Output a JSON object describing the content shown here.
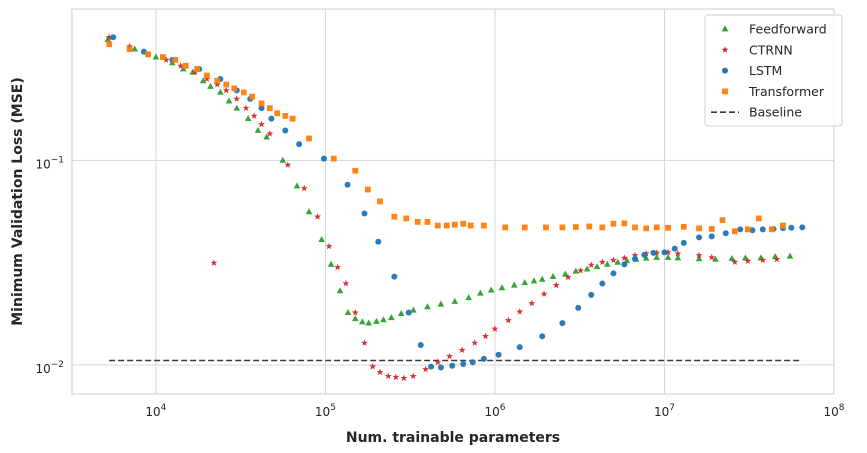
{
  "chart_data": {
    "type": "scatter",
    "xlabel": "Num. trainable parameters",
    "ylabel": "Minimum Validation Loss (MSE)",
    "xscale": "log",
    "yscale": "log",
    "xlim": [
      3200,
      100000000
    ],
    "ylim": [
      0.0072,
      0.55
    ],
    "grid": true,
    "legend_position": "top-right",
    "x_ticks": [
      {
        "value": 10000,
        "base": "10",
        "exp": "4"
      },
      {
        "value": 100000,
        "base": "10",
        "exp": "5"
      },
      {
        "value": 1000000,
        "base": "10",
        "exp": "6"
      },
      {
        "value": 10000000,
        "base": "10",
        "exp": "7"
      },
      {
        "value": 100000000,
        "base": "10",
        "exp": "8"
      }
    ],
    "y_ticks": [
      {
        "value": 0.01,
        "base": "10",
        "exp": "−2"
      },
      {
        "value": 0.1,
        "base": "10",
        "exp": "−1"
      }
    ],
    "series": [
      {
        "name": "Feedforward",
        "marker": "triangle",
        "color": "#2ca02c",
        "points": [
          [
            5200,
            0.39
          ],
          [
            7500,
            0.35
          ],
          [
            10000,
            0.32
          ],
          [
            12500,
            0.3
          ],
          [
            14500,
            0.28
          ],
          [
            16500,
            0.27
          ],
          [
            19000,
            0.245
          ],
          [
            21000,
            0.23
          ],
          [
            24000,
            0.215
          ],
          [
            27000,
            0.195
          ],
          [
            30000,
            0.18
          ],
          [
            35000,
            0.16
          ],
          [
            40000,
            0.14
          ],
          [
            45000,
            0.13
          ],
          [
            56000,
            0.1
          ],
          [
            68000,
            0.075
          ],
          [
            80000,
            0.056
          ],
          [
            95000,
            0.041
          ],
          [
            108000,
            0.031
          ],
          [
            122000,
            0.023
          ],
          [
            136000,
            0.018
          ],
          [
            150000,
            0.0168
          ],
          [
            165000,
            0.0162
          ],
          [
            180000,
            0.016
          ],
          [
            200000,
            0.0163
          ],
          [
            220000,
            0.0166
          ],
          [
            245000,
            0.017
          ],
          [
            280000,
            0.0178
          ],
          [
            330000,
            0.0185
          ],
          [
            400000,
            0.0192
          ],
          [
            480000,
            0.0198
          ],
          [
            580000,
            0.0204
          ],
          [
            700000,
            0.0213
          ],
          [
            820000,
            0.0224
          ],
          [
            950000,
            0.0232
          ],
          [
            1100000,
            0.0238
          ],
          [
            1300000,
            0.0245
          ],
          [
            1500000,
            0.0252
          ],
          [
            1700000,
            0.0257
          ],
          [
            1900000,
            0.0262
          ],
          [
            2200000,
            0.027
          ],
          [
            2600000,
            0.0278
          ],
          [
            3000000,
            0.0287
          ],
          [
            3500000,
            0.0294
          ],
          [
            4000000,
            0.0302
          ],
          [
            4600000,
            0.031
          ],
          [
            5300000,
            0.0317
          ],
          [
            6000000,
            0.0323
          ],
          [
            6800000,
            0.0328
          ],
          [
            7800000,
            0.0332
          ],
          [
            9000000,
            0.0335
          ],
          [
            10500000,
            0.0335
          ],
          [
            12000000,
            0.0333
          ],
          [
            16000000,
            0.033
          ],
          [
            20000000,
            0.0328
          ],
          [
            25000000,
            0.0331
          ],
          [
            30000000,
            0.0333
          ],
          [
            37000000,
            0.0333
          ],
          [
            45000000,
            0.0338
          ],
          [
            55000000,
            0.034
          ]
        ]
      },
      {
        "name": "CTRNN",
        "marker": "star",
        "color": "#d62728",
        "points": [
          [
            5300,
            0.4
          ],
          [
            7000,
            0.36
          ],
          [
            9000,
            0.33
          ],
          [
            11500,
            0.31
          ],
          [
            14000,
            0.29
          ],
          [
            17000,
            0.27
          ],
          [
            20000,
            0.25
          ],
          [
            23000,
            0.235
          ],
          [
            26000,
            0.22
          ],
          [
            30000,
            0.2
          ],
          [
            34000,
            0.18
          ],
          [
            38000,
            0.165
          ],
          [
            42000,
            0.15
          ],
          [
            47000,
            0.135
          ],
          [
            60000,
            0.095
          ],
          [
            75000,
            0.073
          ],
          [
            90000,
            0.053
          ],
          [
            105000,
            0.038
          ],
          [
            118000,
            0.03
          ],
          [
            132000,
            0.025
          ],
          [
            150000,
            0.018
          ],
          [
            170000,
            0.0128
          ],
          [
            190000,
            0.0098
          ],
          [
            210000,
            0.0092
          ],
          [
            235000,
            0.0088
          ],
          [
            260000,
            0.0087
          ],
          [
            290000,
            0.0086
          ],
          [
            330000,
            0.0088
          ],
          [
            390000,
            0.0095
          ],
          [
            460000,
            0.0103
          ],
          [
            540000,
            0.011
          ],
          [
            640000,
            0.0118
          ],
          [
            760000,
            0.0128
          ],
          [
            880000,
            0.0138
          ],
          [
            1000000,
            0.015
          ],
          [
            1200000,
            0.0165
          ],
          [
            1400000,
            0.0182
          ],
          [
            1650000,
            0.02
          ],
          [
            1950000,
            0.0222
          ],
          [
            2300000,
            0.0245
          ],
          [
            2700000,
            0.0268
          ],
          [
            3200000,
            0.0289
          ],
          [
            3700000,
            0.0308
          ],
          [
            4300000,
            0.0318
          ],
          [
            5000000,
            0.0325
          ],
          [
            5800000,
            0.0333
          ],
          [
            6700000,
            0.0343
          ],
          [
            7800000,
            0.035
          ],
          [
            9000000,
            0.0353
          ],
          [
            10500000,
            0.0355
          ],
          [
            12000000,
            0.035
          ],
          [
            16000000,
            0.0343
          ],
          [
            19000000,
            0.0335
          ],
          [
            22000,
            0.0315
          ],
          [
            26000000,
            0.0318
          ],
          [
            31000000,
            0.0322
          ],
          [
            38000000,
            0.0325
          ],
          [
            46000000,
            0.0328
          ]
        ]
      },
      {
        "name": "LSTM",
        "marker": "circle",
        "color": "#1f77b4",
        "points": [
          [
            5600,
            0.4
          ],
          [
            8500,
            0.34
          ],
          [
            12500,
            0.31
          ],
          [
            18000,
            0.28
          ],
          [
            24000,
            0.25
          ],
          [
            30000,
            0.22
          ],
          [
            36000,
            0.2
          ],
          [
            42000,
            0.18
          ],
          [
            48000,
            0.16
          ],
          [
            58000,
            0.14
          ],
          [
            70000,
            0.12
          ],
          [
            98000,
            0.102
          ],
          [
            135000,
            0.076
          ],
          [
            170000,
            0.055
          ],
          [
            205000,
            0.04
          ],
          [
            255000,
            0.027
          ],
          [
            310000,
            0.018
          ],
          [
            365000,
            0.0125
          ],
          [
            420000,
            0.0098
          ],
          [
            480000,
            0.0097
          ],
          [
            560000,
            0.0099
          ],
          [
            650000,
            0.0101
          ],
          [
            740000,
            0.0103
          ],
          [
            860000,
            0.0107
          ],
          [
            1050000,
            0.0112
          ],
          [
            1400000,
            0.0122
          ],
          [
            1900000,
            0.0138
          ],
          [
            2500000,
            0.016
          ],
          [
            3100000,
            0.019
          ],
          [
            3700000,
            0.022
          ],
          [
            4300000,
            0.025
          ],
          [
            5000000,
            0.028
          ],
          [
            5800000,
            0.031
          ],
          [
            6700000,
            0.033
          ],
          [
            7600000,
            0.0345
          ],
          [
            8600000,
            0.0353
          ],
          [
            10000000,
            0.0355
          ],
          [
            11500000,
            0.037
          ],
          [
            13000000,
            0.0395
          ],
          [
            16000000,
            0.042
          ],
          [
            19000000,
            0.0425
          ],
          [
            23000000,
            0.044
          ],
          [
            28000000,
            0.046
          ],
          [
            33000000,
            0.0455
          ],
          [
            38000000,
            0.046
          ],
          [
            44000000,
            0.0462
          ],
          [
            50000000,
            0.0466
          ],
          [
            56000000,
            0.0468
          ],
          [
            65000000,
            0.047
          ]
        ]
      },
      {
        "name": "Transformer",
        "marker": "square",
        "color": "#ff7f0e",
        "points": [
          [
            5300,
            0.37
          ],
          [
            7000,
            0.35
          ],
          [
            9000,
            0.33
          ],
          [
            11000,
            0.32
          ],
          [
            13000,
            0.31
          ],
          [
            15000,
            0.29
          ],
          [
            17500,
            0.28
          ],
          [
            20000,
            0.26
          ],
          [
            23000,
            0.245
          ],
          [
            26000,
            0.235
          ],
          [
            29000,
            0.225
          ],
          [
            33000,
            0.215
          ],
          [
            37000,
            0.205
          ],
          [
            42000,
            0.19
          ],
          [
            47000,
            0.18
          ],
          [
            52000,
            0.17
          ],
          [
            58000,
            0.165
          ],
          [
            64000,
            0.16
          ],
          [
            80000,
            0.128
          ],
          [
            112000,
            0.102
          ],
          [
            150000,
            0.089
          ],
          [
            178000,
            0.072
          ],
          [
            210000,
            0.063
          ],
          [
            255000,
            0.053
          ],
          [
            300000,
            0.052
          ],
          [
            350000,
            0.05
          ],
          [
            400000,
            0.05
          ],
          [
            460000,
            0.048
          ],
          [
            520000,
            0.048
          ],
          [
            580000,
            0.0485
          ],
          [
            650000,
            0.049
          ],
          [
            720000,
            0.048
          ],
          [
            860000,
            0.048
          ],
          [
            1150000,
            0.047
          ],
          [
            1500000,
            0.047
          ],
          [
            2000000,
            0.047
          ],
          [
            2500000,
            0.047
          ],
          [
            3000000,
            0.0472
          ],
          [
            3600000,
            0.0475
          ],
          [
            4300000,
            0.047
          ],
          [
            5000000,
            0.049
          ],
          [
            5800000,
            0.0492
          ],
          [
            6700000,
            0.047
          ],
          [
            7800000,
            0.0465
          ],
          [
            9000000,
            0.047
          ],
          [
            10500000,
            0.0468
          ],
          [
            13000000,
            0.0473
          ],
          [
            16000000,
            0.0465
          ],
          [
            19000000,
            0.0462
          ],
          [
            22000000,
            0.051
          ],
          [
            26000000,
            0.045
          ],
          [
            31000000,
            0.046
          ],
          [
            36000000,
            0.052
          ],
          [
            43000000,
            0.046
          ],
          [
            50000000,
            0.048
          ]
        ]
      },
      {
        "name": "Baseline",
        "marker": "dashed-line",
        "color": "#3a3a3a",
        "x_range": [
          5300,
          65000000
        ],
        "value": 0.0105
      }
    ]
  },
  "icons": {
    "legend_feedforward": "triangle-marker",
    "legend_ctrnn": "star-marker",
    "legend_lstm": "circle-marker",
    "legend_transformer": "square-marker",
    "legend_baseline": "dashed-line"
  }
}
